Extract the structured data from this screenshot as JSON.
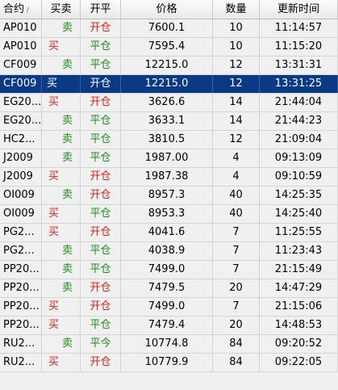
{
  "columns": [
    "合约",
    "买卖",
    "开平",
    "价格",
    "数量",
    "更新时间"
  ],
  "sort_indicator": "/",
  "rows": [
    {
      "contract": "AP010",
      "direction": "卖",
      "offset": "开仓",
      "price": "7600.1",
      "qty": "10",
      "time": "11:14:57"
    },
    {
      "contract": "AP010",
      "direction": "买",
      "offset": "平仓",
      "price": "7595.4",
      "qty": "10",
      "time": "11:15:20"
    },
    {
      "contract": "CF009",
      "direction": "卖",
      "offset": "平仓",
      "price": "12215.0",
      "qty": "12",
      "time": "13:31:31"
    },
    {
      "contract": "CF009",
      "direction": "买",
      "offset": "开仓",
      "price": "12215.0",
      "qty": "12",
      "time": "13:31:25"
    },
    {
      "contract": "EG20...",
      "direction": "买",
      "offset": "开仓",
      "price": "3626.6",
      "qty": "14",
      "time": "21:44:04"
    },
    {
      "contract": "EG20...",
      "direction": "卖",
      "offset": "平仓",
      "price": "3633.1",
      "qty": "14",
      "time": "21:44:23"
    },
    {
      "contract": "HC2...",
      "direction": "卖",
      "offset": "平仓",
      "price": "3810.5",
      "qty": "12",
      "time": "21:09:04"
    },
    {
      "contract": "J2009",
      "direction": "卖",
      "offset": "平仓",
      "price": "1987.00",
      "qty": "4",
      "time": "09:13:09"
    },
    {
      "contract": "J2009",
      "direction": "买",
      "offset": "开仓",
      "price": "1987.38",
      "qty": "4",
      "time": "09:10:59"
    },
    {
      "contract": "OI009",
      "direction": "卖",
      "offset": "开仓",
      "price": "8957.3",
      "qty": "40",
      "time": "14:25:35"
    },
    {
      "contract": "OI009",
      "direction": "买",
      "offset": "平仓",
      "price": "8953.3",
      "qty": "40",
      "time": "14:25:40"
    },
    {
      "contract": "PG2...",
      "direction": "买",
      "offset": "开仓",
      "price": "4041.6",
      "qty": "7",
      "time": "11:25:55"
    },
    {
      "contract": "PG2...",
      "direction": "卖",
      "offset": "平仓",
      "price": "4038.9",
      "qty": "7",
      "time": "11:23:43"
    },
    {
      "contract": "PP20...",
      "direction": "卖",
      "offset": "平仓",
      "price": "7499.0",
      "qty": "7",
      "time": "21:15:49"
    },
    {
      "contract": "PP20...",
      "direction": "卖",
      "offset": "开仓",
      "price": "7479.5",
      "qty": "20",
      "time": "14:47:29"
    },
    {
      "contract": "PP20...",
      "direction": "买",
      "offset": "开仓",
      "price": "7499.0",
      "qty": "7",
      "time": "21:15:06"
    },
    {
      "contract": "PP20...",
      "direction": "买",
      "offset": "平仓",
      "price": "7479.4",
      "qty": "20",
      "time": "14:48:53"
    },
    {
      "contract": "RU2...",
      "direction": "卖",
      "offset": "平今",
      "price": "10774.8",
      "qty": "84",
      "time": "09:20:52"
    },
    {
      "contract": "RU2...",
      "direction": "买",
      "offset": "开仓",
      "price": "10779.9",
      "qty": "84",
      "time": "09:22:05"
    }
  ],
  "selected_row": 3,
  "colors": {
    "buy_open": "#e0201a",
    "sell_close": "#1e8c1e",
    "selection": "#0a3a86"
  }
}
